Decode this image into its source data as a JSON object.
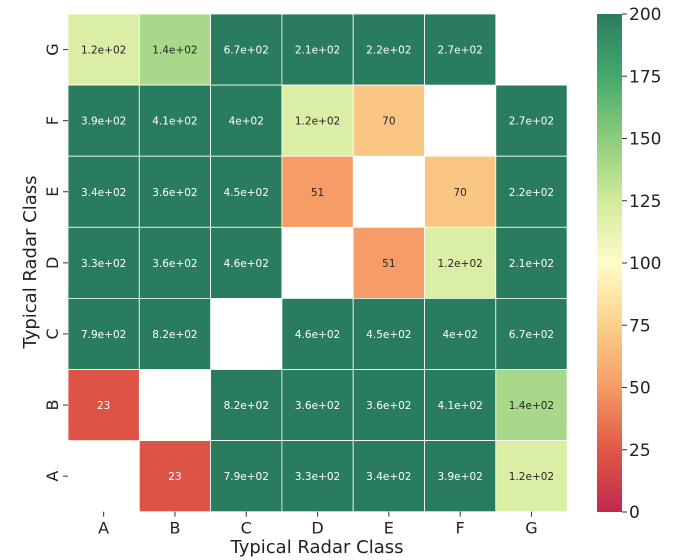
{
  "chart_data": {
    "type": "heatmap",
    "title": "",
    "xlabel": "Typical Radar Class",
    "ylabel": "Typical Radar Class",
    "x_categories": [
      "A",
      "B",
      "C",
      "D",
      "E",
      "F",
      "G"
    ],
    "y_categories": [
      "A",
      "B",
      "C",
      "D",
      "E",
      "F",
      "G"
    ],
    "y_order_top_to_bottom": [
      "G",
      "F",
      "E",
      "D",
      "C",
      "B",
      "A"
    ],
    "cells": [
      {
        "y": "G",
        "values": [
          120,
          140,
          670,
          210,
          220,
          270,
          null
        ],
        "labels": [
          "1.2e+02",
          "1.4e+02",
          "6.7e+02",
          "2.1e+02",
          "2.2e+02",
          "2.7e+02",
          ""
        ]
      },
      {
        "y": "F",
        "values": [
          390,
          410,
          400,
          120,
          70,
          null,
          270
        ],
        "labels": [
          "3.9e+02",
          "4.1e+02",
          "4e+02",
          "1.2e+02",
          "70",
          "",
          "2.7e+02"
        ]
      },
      {
        "y": "E",
        "values": [
          340,
          360,
          450,
          51,
          null,
          70,
          220
        ],
        "labels": [
          "3.4e+02",
          "3.6e+02",
          "4.5e+02",
          "51",
          "",
          "70",
          "2.2e+02"
        ]
      },
      {
        "y": "D",
        "values": [
          330,
          360,
          460,
          null,
          51,
          120,
          210
        ],
        "labels": [
          "3.3e+02",
          "3.6e+02",
          "4.6e+02",
          "",
          "51",
          "1.2e+02",
          "2.1e+02"
        ]
      },
      {
        "y": "C",
        "values": [
          790,
          820,
          null,
          460,
          450,
          400,
          670
        ],
        "labels": [
          "7.9e+02",
          "8.2e+02",
          "",
          "4.6e+02",
          "4.5e+02",
          "4e+02",
          "6.7e+02"
        ]
      },
      {
        "y": "B",
        "values": [
          23,
          null,
          820,
          360,
          360,
          410,
          140
        ],
        "labels": [
          "23",
          "",
          "8.2e+02",
          "3.6e+02",
          "3.6e+02",
          "4.1e+02",
          "1.4e+02"
        ]
      },
      {
        "y": "A",
        "values": [
          null,
          23,
          790,
          330,
          340,
          390,
          120
        ],
        "labels": [
          "",
          "23",
          "7.9e+02",
          "3.3e+02",
          "3.4e+02",
          "3.9e+02",
          "1.2e+02"
        ]
      }
    ],
    "colorbar": {
      "vmin": 0,
      "vmax": 200,
      "ticks": [
        "0",
        "25",
        "50",
        "75",
        "100",
        "125",
        "150",
        "175",
        "200"
      ],
      "colormap": "RdYlGn"
    },
    "grid": false,
    "legend": "colorbar-right"
  }
}
